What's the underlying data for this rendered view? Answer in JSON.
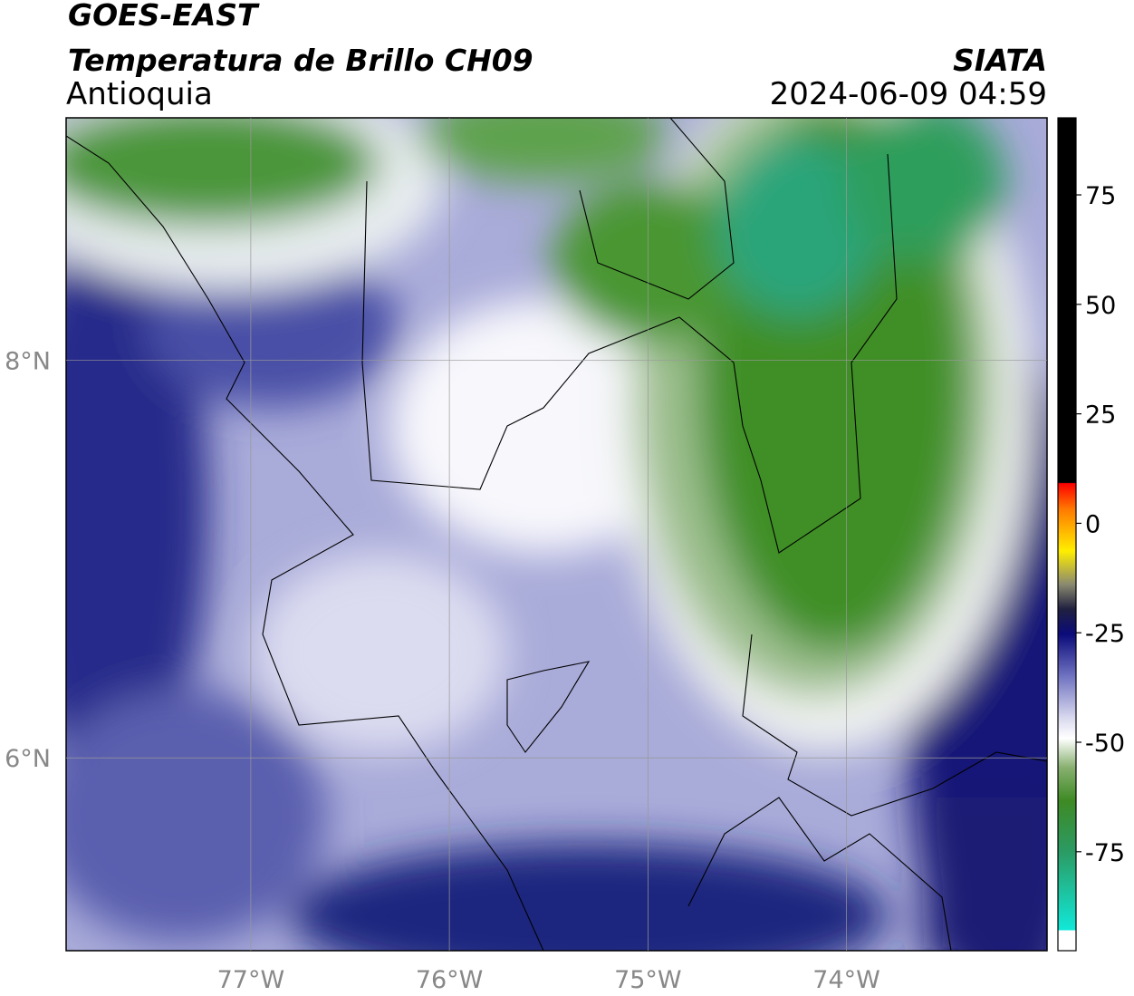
{
  "header": {
    "title": "GOES-EAST",
    "subtitle": "Temperatura de Brillo CH09",
    "region": "Antioquia",
    "source": "SIATA",
    "timestamp": "2024-06-09 04:59"
  },
  "map": {
    "xlim": [
      -77.93,
      -72.99
    ],
    "ylim": [
      5.03,
      9.22
    ],
    "xticks": [
      {
        "value": -77,
        "label": "77°W"
      },
      {
        "value": -76,
        "label": "76°W"
      },
      {
        "value": -75,
        "label": "75°W"
      },
      {
        "value": -74,
        "label": "74°W"
      }
    ],
    "yticks": [
      {
        "value": 8,
        "label": "8°N"
      },
      {
        "value": 6,
        "label": "6°N"
      }
    ],
    "grid": true
  },
  "colorbar": {
    "lim": [
      -97.6,
      92.6
    ],
    "ticks": [
      75,
      50,
      25,
      0,
      -25,
      -50,
      -75
    ]
  }
}
